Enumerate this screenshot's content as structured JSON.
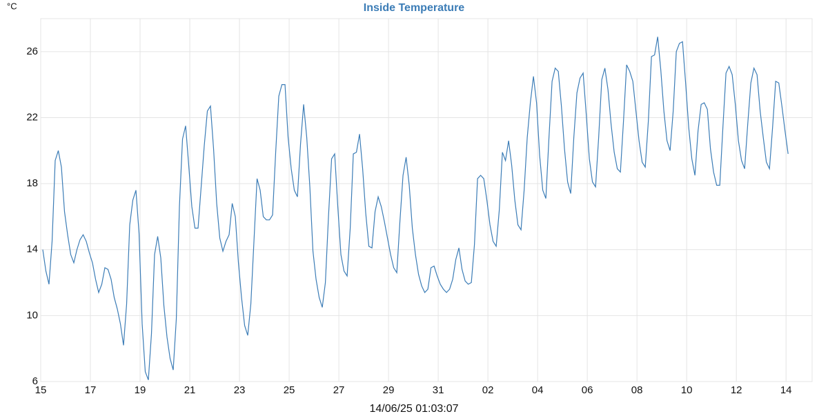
{
  "chart_data": {
    "type": "line",
    "title": "Inside Temperature",
    "y_unit": "°C",
    "x_label": "14/06/25 01:03:07",
    "x": [
      0.083,
      0.208,
      0.333,
      0.458,
      0.583,
      0.708,
      0.833,
      0.958,
      1.083,
      1.208,
      1.333,
      1.458,
      1.583,
      1.708,
      1.833,
      1.958,
      2.083,
      2.208,
      2.333,
      2.458,
      2.583,
      2.708,
      2.833,
      2.958,
      3.083,
      3.208,
      3.333,
      3.458,
      3.583,
      3.708,
      3.833,
      3.958,
      4.083,
      4.208,
      4.333,
      4.458,
      4.583,
      4.708,
      4.833,
      4.958,
      5.083,
      5.208,
      5.333,
      5.458,
      5.583,
      5.708,
      5.833,
      5.958,
      6.083,
      6.208,
      6.333,
      6.458,
      6.583,
      6.708,
      6.833,
      6.958,
      7.083,
      7.208,
      7.333,
      7.458,
      7.583,
      7.708,
      7.833,
      7.958,
      8.083,
      8.208,
      8.333,
      8.458,
      8.583,
      8.708,
      8.833,
      8.958,
      9.083,
      9.208,
      9.333,
      9.458,
      9.583,
      9.708,
      9.833,
      9.958,
      10.083,
      10.208,
      10.333,
      10.458,
      10.583,
      10.708,
      10.833,
      10.958,
      11.083,
      11.208,
      11.333,
      11.458,
      11.583,
      11.708,
      11.833,
      11.958,
      12.083,
      12.208,
      12.333,
      12.458,
      12.583,
      12.708,
      12.833,
      12.958,
      13.083,
      13.208,
      13.333,
      13.458,
      13.583,
      13.708,
      13.833,
      13.958,
      14.083,
      14.208,
      14.333,
      14.458,
      14.583,
      14.708,
      14.833,
      14.958,
      15.083,
      15.208,
      15.333,
      15.458,
      15.583,
      15.708,
      15.833,
      15.958,
      16.083,
      16.208,
      16.333,
      16.458,
      16.583,
      16.708,
      16.833,
      16.958,
      17.083,
      17.208,
      17.333,
      17.458,
      17.583,
      17.708,
      17.833,
      17.958,
      18.083,
      18.208,
      18.333,
      18.458,
      18.583,
      18.708,
      18.833,
      18.958,
      19.083,
      19.208,
      19.333,
      19.458,
      19.583,
      19.708,
      19.833,
      19.958,
      20.083,
      20.208,
      20.333,
      20.458,
      20.583,
      20.708,
      20.833,
      20.958,
      21.083,
      21.208,
      21.333,
      21.458,
      21.583,
      21.708,
      21.833,
      21.958,
      22.083,
      22.208,
      22.333,
      22.458,
      22.583,
      22.708,
      22.833,
      22.958,
      23.083,
      23.208,
      23.333,
      23.458,
      23.583,
      23.708,
      23.833,
      23.958,
      24.083,
      24.208,
      24.333,
      24.458,
      24.583,
      24.708,
      24.833,
      24.958,
      25.083,
      25.208,
      25.333,
      25.458,
      25.583,
      25.708,
      25.833,
      25.958,
      26.083,
      26.208,
      26.333,
      26.458,
      26.583,
      26.708,
      26.833,
      26.958,
      27.083,
      27.208,
      27.333,
      27.458,
      27.583,
      27.708,
      27.833,
      27.958,
      28.083,
      28.208,
      28.333,
      28.458,
      28.583,
      28.708,
      28.833,
      28.958,
      29.083,
      29.208,
      29.333,
      29.458,
      29.583,
      29.708,
      29.833,
      29.958,
      30.083
    ],
    "series": [
      {
        "name": "Inside Temperature",
        "color": "#3b7cb6",
        "values": [
          14.0,
          12.7,
          11.9,
          14.5,
          19.4,
          20.0,
          19.0,
          16.3,
          14.9,
          13.7,
          13.2,
          14.0,
          14.6,
          14.9,
          14.5,
          13.8,
          13.2,
          12.2,
          11.4,
          11.9,
          12.9,
          12.8,
          12.2,
          11.1,
          10.4,
          9.5,
          8.2,
          10.7,
          15.5,
          17.0,
          17.6,
          15.0,
          9.5,
          6.6,
          6.1,
          8.9,
          13.7,
          14.8,
          13.5,
          10.6,
          8.7,
          7.4,
          6.7,
          9.8,
          16.6,
          20.7,
          21.5,
          19.1,
          16.6,
          15.3,
          15.3,
          17.8,
          20.3,
          22.4,
          22.7,
          20.1,
          16.8,
          14.7,
          13.9,
          14.5,
          14.9,
          16.8,
          16.0,
          13.2,
          11.1,
          9.4,
          8.8,
          10.7,
          14.5,
          18.3,
          17.6,
          16.0,
          15.8,
          15.8,
          16.1,
          19.9,
          23.3,
          24.0,
          24.0,
          20.8,
          18.9,
          17.6,
          17.2,
          20.4,
          22.8,
          20.8,
          17.8,
          13.9,
          12.2,
          11.1,
          10.5,
          12.0,
          16.0,
          19.5,
          19.8,
          16.6,
          13.7,
          12.7,
          12.4,
          15.3,
          19.8,
          19.9,
          21.0,
          18.9,
          16.2,
          14.2,
          14.1,
          16.3,
          17.2,
          16.6,
          15.7,
          14.7,
          13.7,
          12.9,
          12.6,
          15.7,
          18.5,
          19.6,
          17.9,
          15.3,
          13.7,
          12.5,
          11.8,
          11.4,
          11.6,
          12.9,
          13.0,
          12.4,
          11.9,
          11.6,
          11.4,
          11.6,
          12.2,
          13.4,
          14.1,
          12.8,
          12.1,
          11.9,
          12.0,
          14.3,
          18.3,
          18.5,
          18.3,
          17.0,
          15.5,
          14.5,
          14.2,
          16.4,
          19.9,
          19.4,
          20.6,
          19.1,
          17.0,
          15.5,
          15.2,
          17.6,
          20.8,
          22.9,
          24.5,
          22.9,
          19.7,
          17.6,
          17.1,
          20.8,
          24.2,
          25.0,
          24.8,
          22.7,
          20.1,
          18.1,
          17.4,
          20.8,
          23.5,
          24.4,
          24.7,
          22.2,
          19.5,
          18.1,
          17.8,
          20.8,
          24.3,
          25.0,
          23.7,
          21.6,
          19.9,
          18.9,
          18.7,
          21.8,
          25.2,
          24.8,
          24.2,
          22.4,
          20.6,
          19.3,
          19.0,
          21.8,
          25.7,
          25.8,
          26.9,
          24.9,
          22.4,
          20.6,
          20.0,
          22.4,
          26.0,
          26.5,
          26.6,
          24.1,
          21.4,
          19.5,
          18.5,
          21.2,
          22.8,
          22.9,
          22.5,
          20.1,
          18.7,
          17.9,
          17.9,
          21.4,
          24.7,
          25.1,
          24.6,
          22.8,
          20.6,
          19.4,
          18.9,
          21.6,
          24.1,
          25.0,
          24.6,
          22.4,
          20.8,
          19.3,
          18.9,
          21.4,
          24.2,
          24.1,
          22.7,
          21.2,
          19.8
        ]
      }
    ],
    "xlim": [
      0,
      31.05
    ],
    "xticks": [
      {
        "value": 0,
        "label": "15"
      },
      {
        "value": 2,
        "label": "17"
      },
      {
        "value": 4,
        "label": "19"
      },
      {
        "value": 6,
        "label": "21"
      },
      {
        "value": 8,
        "label": "23"
      },
      {
        "value": 10,
        "label": "25"
      },
      {
        "value": 12,
        "label": "27"
      },
      {
        "value": 14,
        "label": "29"
      },
      {
        "value": 16,
        "label": "31"
      },
      {
        "value": 18,
        "label": "02"
      },
      {
        "value": 20,
        "label": "04"
      },
      {
        "value": 22,
        "label": "06"
      },
      {
        "value": 24,
        "label": "08"
      },
      {
        "value": 26,
        "label": "10"
      },
      {
        "value": 28,
        "label": "12"
      },
      {
        "value": 30,
        "label": "14"
      }
    ],
    "ylim": [
      6,
      28
    ],
    "yticks": [
      6,
      10,
      14,
      18,
      22,
      26
    ],
    "grid": true
  }
}
